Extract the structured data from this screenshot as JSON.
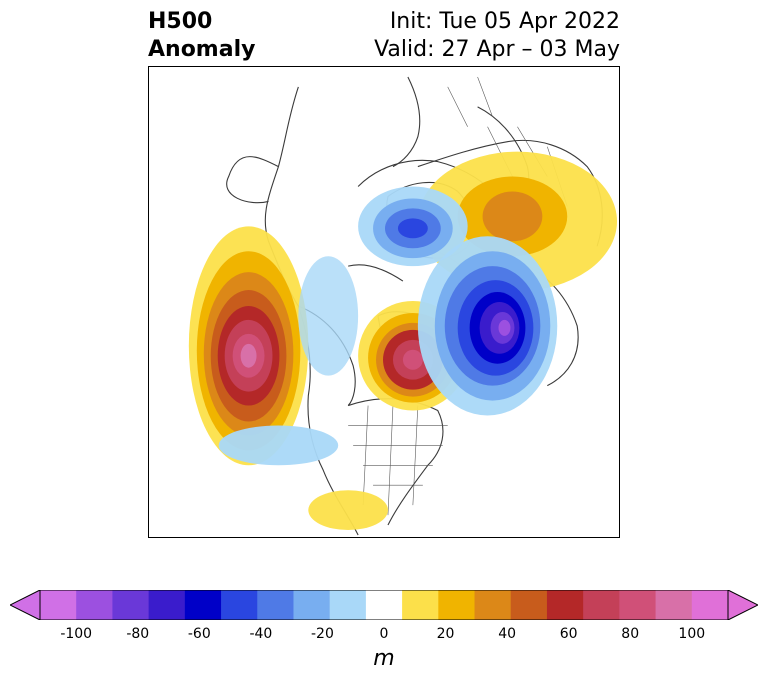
{
  "title": {
    "left_line1": "H500",
    "left_line2": "Anomaly",
    "right_line1": "Init: Tue 05 Apr 2022",
    "right_line2": "Valid: 27 Apr – 03 May"
  },
  "map": {
    "projection": "polar stereographic (North America / Arctic)",
    "anomaly_features": [
      {
        "sign": "positive",
        "peak_m": 80,
        "region": "NE Pacific / Gulf of Alaska"
      },
      {
        "sign": "positive",
        "peak_m": 70,
        "region": "Arctic (north of Canada)"
      },
      {
        "sign": "positive",
        "peak_m": 40,
        "region": "Western Russia / Europe"
      },
      {
        "sign": "negative",
        "peak_m": -90,
        "region": "Northern Siberia / Arctic Ocean"
      },
      {
        "sign": "negative",
        "peak_m": -50,
        "region": "Eastern Siberia"
      },
      {
        "sign": "negative",
        "peak_m": -20,
        "region": "Southern Canada / Northern US"
      }
    ]
  },
  "colorbar": {
    "units": "m",
    "tick_labels": [
      "-100",
      "-80",
      "-60",
      "-40",
      "-20",
      "0",
      "20",
      "40",
      "60",
      "80",
      "100"
    ],
    "levels": [
      -100,
      -90,
      -80,
      -70,
      -60,
      -50,
      -40,
      -30,
      -20,
      -10,
      10,
      20,
      30,
      40,
      50,
      60,
      70,
      80,
      90,
      100
    ],
    "colors": [
      "#d070e6",
      "#9c50e0",
      "#6a38d8",
      "#3a1ccc",
      "#0000c8",
      "#2a46e0",
      "#4f7ae6",
      "#78aef0",
      "#a9d8f8",
      "#ffffff",
      "#fce04a",
      "#f0b400",
      "#dc8818",
      "#c85c1c",
      "#b42828",
      "#c44058",
      "#d05078",
      "#d870a8",
      "#e070d8"
    ],
    "extend": "both"
  }
}
